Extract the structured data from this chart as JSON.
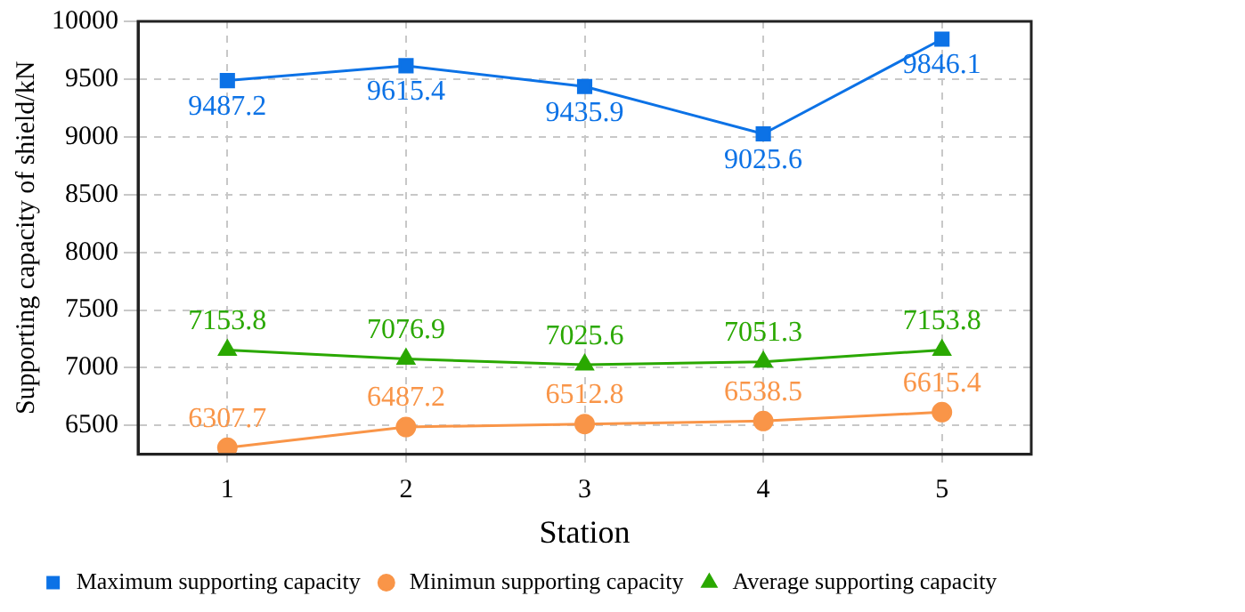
{
  "chart_data": {
    "type": "line",
    "xlabel": "Station",
    "ylabel": "Supporting capacity of shield/kN",
    "categories": [
      "1",
      "2",
      "3",
      "4",
      "5"
    ],
    "series": [
      {
        "name": "Maximum supporting capacity",
        "color": "#0c72e6",
        "marker": "square",
        "values": [
          9487.2,
          9615.4,
          9435.9,
          9025.6,
          9846.1
        ]
      },
      {
        "name": "Minimun supporting capacity",
        "color": "#f99548",
        "marker": "circle",
        "values": [
          6307.7,
          6487.2,
          6512.8,
          6538.5,
          6615.4
        ]
      },
      {
        "name": "Average supporting capacity",
        "color": "#2aa800",
        "marker": "triangle",
        "values": [
          7153.8,
          7076.9,
          7025.6,
          7051.3,
          7153.8
        ]
      }
    ],
    "ylim": [
      6250,
      10000
    ],
    "yticks": [
      6500,
      7000,
      7500,
      8000,
      8500,
      9000,
      9500,
      10000
    ],
    "grid": true,
    "legend": "bottom",
    "data_labels": true,
    "line_style": "solid"
  }
}
